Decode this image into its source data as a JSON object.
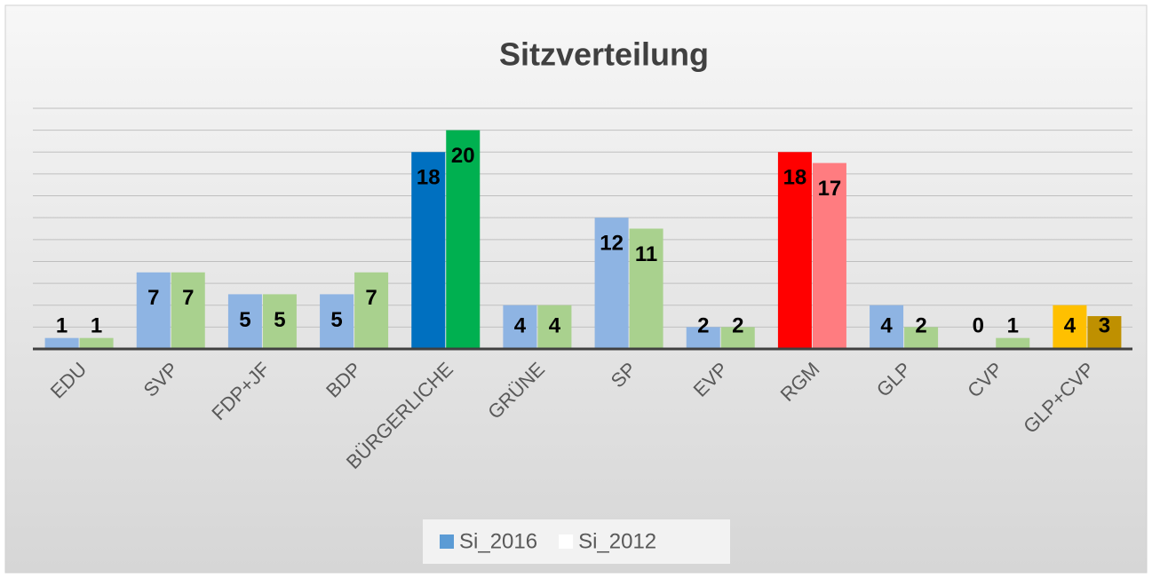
{
  "chart_data": {
    "type": "bar",
    "title": "Sitzverteilung",
    "categories": [
      "EDU",
      "SVP",
      "FDP+JF",
      "BDP",
      "BÜRGERLICHE",
      "GRÜNE",
      "SP",
      "EVP",
      "RGM",
      "GLP",
      "CVP",
      "GLP+CVP"
    ],
    "series": [
      {
        "name": "Si_2016",
        "color": "#5b9bd5",
        "colors": [
          "#8eb4e3",
          "#8eb4e3",
          "#8eb4e3",
          "#8eb4e3",
          "#0070c0",
          "#8eb4e3",
          "#8eb4e3",
          "#8eb4e3",
          "#ff0000",
          "#8eb4e3",
          "#8eb4e3",
          "#ffc000"
        ],
        "values": [
          1,
          7,
          5,
          5,
          18,
          4,
          12,
          2,
          18,
          4,
          0,
          4
        ]
      },
      {
        "name": "Si_2012",
        "color": "#ffffff",
        "colors": [
          "#a9d18e",
          "#a9d18e",
          "#a9d18e",
          "#a9d18e",
          "#00b050",
          "#a9d18e",
          "#a9d18e",
          "#a9d18e",
          "#ff7c80",
          "#a9d18e",
          "#a9d18e",
          "#bf9000"
        ],
        "values": [
          1,
          7,
          5,
          7,
          20,
          4,
          11,
          2,
          17,
          2,
          1,
          3
        ]
      }
    ],
    "ylim": [
      0,
      22
    ],
    "yticks": [
      0,
      2,
      4,
      6,
      8,
      10,
      12,
      14,
      16,
      18,
      20,
      22
    ],
    "grid": true,
    "legend": "bottom"
  }
}
